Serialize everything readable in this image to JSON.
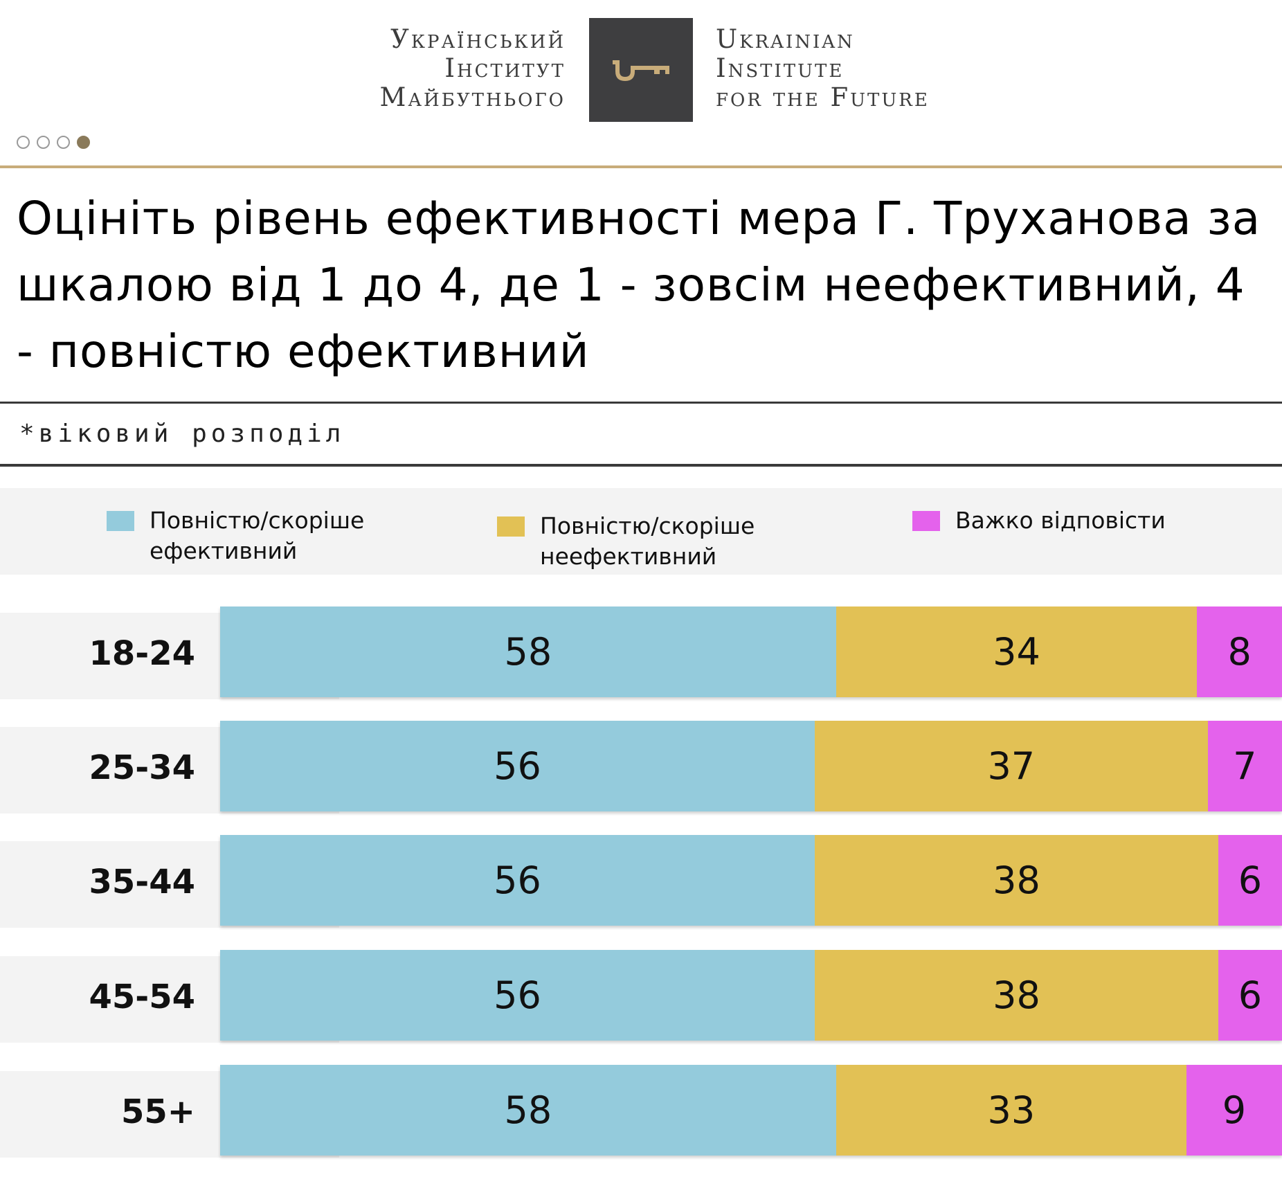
{
  "header": {
    "logo_ua": [
      "Український",
      "Інститут",
      "Майбутнього"
    ],
    "logo_en": [
      "Ukrainian",
      "Institute",
      "for the Future"
    ]
  },
  "pager": {
    "total": 4,
    "active": 4
  },
  "title": "Оцініть рівень ефективності мера Г. Труханова за шкалою від 1 до 4, де 1 - зовсім неефективний, 4 - повністю ефективний",
  "subtitle": "*віковий розподіл",
  "colors": {
    "effective": "#94cbdc",
    "ineffective": "#e2c155",
    "hard": "#e462ec"
  },
  "chart_data": {
    "type": "bar",
    "orientation": "horizontal",
    "stacked": true,
    "categories": [
      "18-24",
      "25-34",
      "35-44",
      "45-54",
      "55+"
    ],
    "series": [
      {
        "name": "Повністю/скоріше\nефективний",
        "key": "effective",
        "values": [
          58,
          56,
          56,
          56,
          58
        ]
      },
      {
        "name": "Повністю/скоріше\nнеефективний",
        "key": "ineffective",
        "values": [
          34,
          37,
          38,
          38,
          33
        ]
      },
      {
        "name": "Важко відповісти",
        "key": "hard",
        "values": [
          8,
          7,
          6,
          6,
          9
        ]
      }
    ],
    "xlim": [
      0,
      100
    ],
    "legend": "top"
  }
}
